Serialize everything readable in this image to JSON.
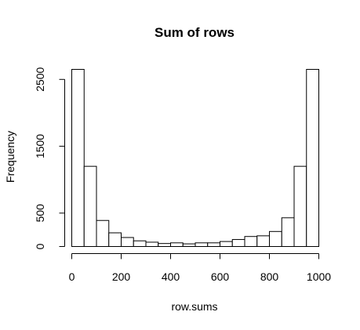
{
  "chart_data": {
    "type": "bar",
    "title": "Sum of rows",
    "xlabel": "row.sums",
    "ylabel": "Frequency",
    "bin_edges": [
      0,
      50,
      100,
      150,
      200,
      250,
      300,
      350,
      400,
      450,
      500,
      550,
      600,
      650,
      700,
      750,
      800,
      850,
      900,
      950,
      1000
    ],
    "values": [
      2650,
      1200,
      390,
      205,
      135,
      85,
      65,
      45,
      55,
      40,
      55,
      55,
      75,
      105,
      150,
      160,
      225,
      430,
      1200,
      2650
    ],
    "xlim": [
      0,
      1000
    ],
    "ylim": [
      0,
      2650
    ],
    "x_ticks": [
      0,
      200,
      400,
      600,
      800,
      1000
    ],
    "y_ticks": [
      0,
      500,
      1500,
      2500
    ],
    "grid": false,
    "legend": "none"
  }
}
